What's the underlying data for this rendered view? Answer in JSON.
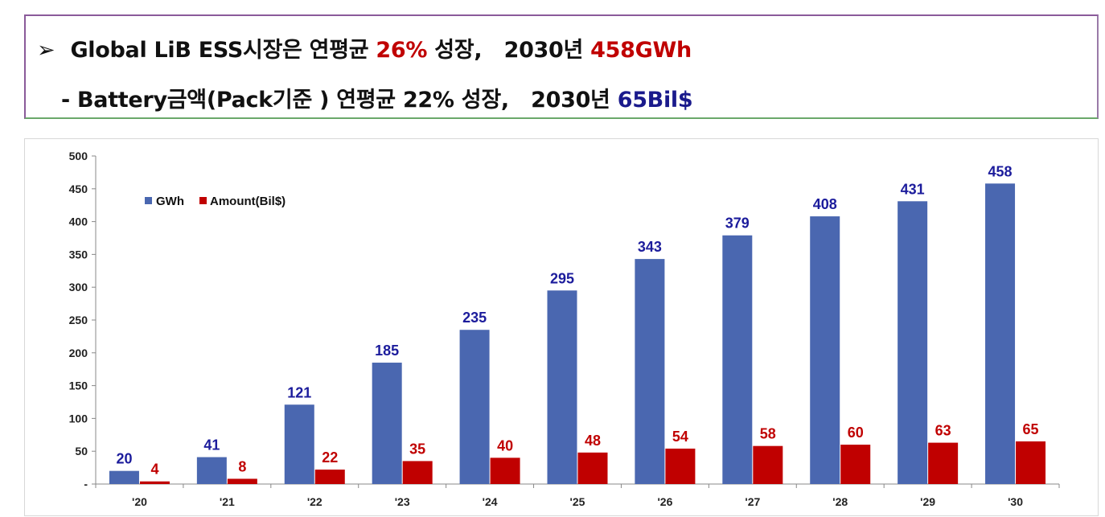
{
  "headline": {
    "line1": {
      "bullet": "➢",
      "text_before": "Global LiB ESS시장은 연평균 ",
      "highlight1": "26%",
      "text_middle": " 성장,   2030년 ",
      "highlight2": "458GWh"
    },
    "line2": {
      "text_before": "- Battery금액(Pack기준 ) 연평균 22% 성장,   2030년 ",
      "highlight": "65Bil$"
    }
  },
  "colors": {
    "gwh": "#4a67b0",
    "amount": "#c00000",
    "gwh_label": "#1c1c9c",
    "amount_label": "#c00000"
  },
  "chart_data": {
    "type": "bar",
    "title": "",
    "xlabel": "",
    "ylabel": "",
    "ylim": [
      0,
      500
    ],
    "yticks": [
      "-",
      "50",
      "100",
      "150",
      "200",
      "250",
      "300",
      "350",
      "400",
      "450",
      "500"
    ],
    "grid": false,
    "legend_position": "top-left",
    "categories": [
      "'20",
      "'21",
      "'22",
      "'23",
      "'24",
      "'25",
      "'26",
      "'27",
      "'28",
      "'29",
      "'30"
    ],
    "series": [
      {
        "name": "GWh",
        "values": [
          20,
          41,
          121,
          185,
          235,
          295,
          343,
          379,
          408,
          431,
          458
        ]
      },
      {
        "name": "Amount(Bil$)",
        "values": [
          4,
          8,
          22,
          35,
          40,
          48,
          54,
          58,
          60,
          63,
          65
        ]
      }
    ]
  }
}
